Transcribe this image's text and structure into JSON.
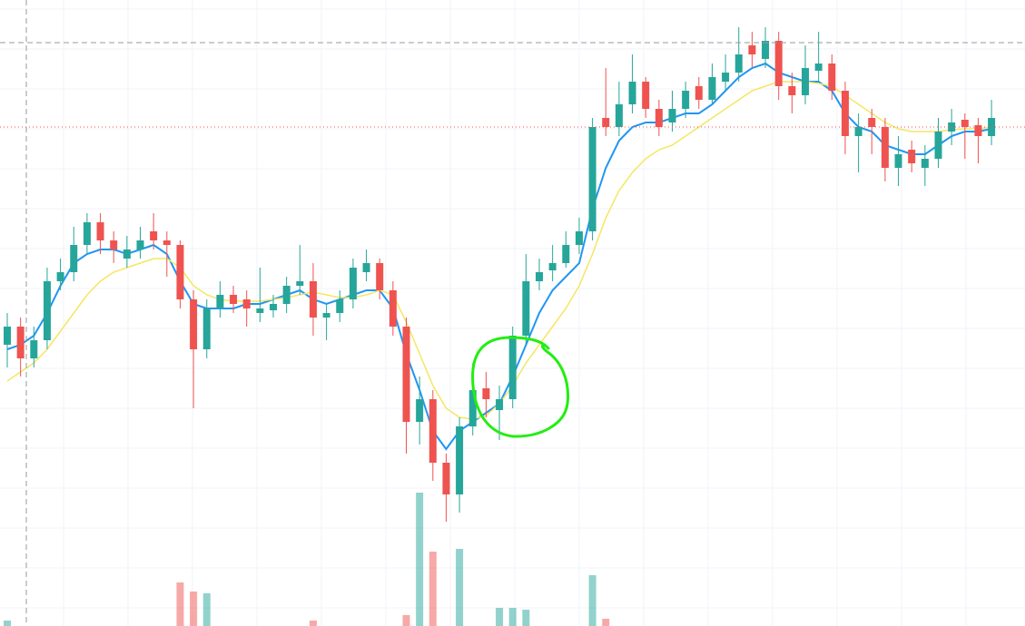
{
  "chart_data": {
    "type": "candlestick",
    "ylim": [
      0,
      690
    ],
    "volume_lim": [
      0,
      690
    ],
    "up_color": "#26a69a",
    "down_color": "#ef5350",
    "grid": true,
    "open": [
      310,
      330,
      295,
      315,
      380,
      390,
      420,
      445,
      425,
      405,
      415,
      435,
      425,
      420,
      360,
      305,
      350,
      365,
      360,
      345,
      348,
      355,
      375,
      380,
      340,
      345,
      360,
      390,
      400,
      370,
      330,
      225,
      250,
      180,
      145,
      220,
      262,
      238,
      250,
      320,
      380,
      392,
      400,
      420,
      435,
      560,
      550,
      575,
      600,
      570,
      555,
      570,
      595,
      580,
      600,
      610,
      640,
      625,
      645,
      595,
      585,
      612,
      620,
      590,
      540,
      560,
      550,
      505,
      525,
      505,
      515,
      545,
      558,
      552,
      540
    ],
    "high": [
      345,
      340,
      330,
      395,
      405,
      440,
      455,
      455,
      435,
      430,
      440,
      455,
      435,
      425,
      370,
      360,
      380,
      375,
      370,
      395,
      365,
      385,
      420,
      400,
      355,
      370,
      405,
      415,
      405,
      380,
      340,
      275,
      260,
      190,
      230,
      290,
      280,
      265,
      330,
      410,
      405,
      420,
      435,
      450,
      560,
      615,
      600,
      630,
      605,
      580,
      590,
      600,
      605,
      620,
      630,
      660,
      655,
      660,
      655,
      610,
      640,
      655,
      630,
      600,
      565,
      570,
      560,
      540,
      535,
      530,
      560,
      570,
      565,
      560,
      580
    ],
    "low": [
      285,
      275,
      285,
      305,
      370,
      380,
      410,
      410,
      400,
      395,
      405,
      415,
      385,
      350,
      240,
      295,
      340,
      345,
      330,
      335,
      340,
      345,
      365,
      320,
      315,
      335,
      350,
      380,
      360,
      320,
      190,
      200,
      160,
      115,
      125,
      210,
      230,
      205,
      240,
      310,
      370,
      380,
      395,
      410,
      425,
      540,
      540,
      565,
      560,
      540,
      545,
      560,
      570,
      575,
      590,
      600,
      615,
      615,
      580,
      565,
      575,
      600,
      580,
      520,
      500,
      520,
      490,
      485,
      500,
      485,
      505,
      530,
      515,
      510,
      530
    ],
    "close": [
      330,
      295,
      315,
      380,
      390,
      420,
      445,
      425,
      415,
      415,
      425,
      425,
      420,
      360,
      305,
      350,
      365,
      355,
      350,
      350,
      355,
      375,
      380,
      340,
      345,
      360,
      395,
      400,
      370,
      330,
      225,
      250,
      180,
      145,
      220,
      260,
      250,
      250,
      320,
      380,
      390,
      400,
      420,
      435,
      550,
      550,
      575,
      600,
      570,
      550,
      570,
      590,
      580,
      605,
      610,
      630,
      630,
      645,
      595,
      585,
      615,
      620,
      590,
      540,
      550,
      550,
      505,
      520,
      510,
      515,
      545,
      555,
      550,
      540,
      560
    ],
    "volume": [
      6,
      null,
      null,
      null,
      null,
      null,
      null,
      null,
      null,
      null,
      null,
      null,
      null,
      48,
      38,
      36,
      null,
      null,
      null,
      null,
      null,
      null,
      null,
      6,
      null,
      null,
      null,
      null,
      null,
      null,
      12,
      147,
      82,
      null,
      85,
      null,
      null,
      20,
      20,
      18,
      null,
      null,
      null,
      null,
      56,
      8,
      null,
      null,
      null,
      null,
      null,
      null,
      null,
      null,
      null,
      null,
      null,
      null,
      null,
      null,
      null,
      null,
      null,
      null,
      null,
      null,
      null,
      null,
      null,
      null,
      null,
      null,
      null,
      null,
      null
    ],
    "lines": [
      {
        "color": "#2196f3",
        "values": [
          305,
          310,
          320,
          345,
          375,
          400,
          410,
          415,
          415,
          410,
          415,
          420,
          410,
          380,
          355,
          350,
          350,
          350,
          355,
          355,
          360,
          365,
          370,
          360,
          355,
          360,
          365,
          370,
          370,
          350,
          300,
          260,
          215,
          195,
          215,
          225,
          235,
          245,
          275,
          310,
          345,
          370,
          385,
          400,
          460,
          505,
          535,
          550,
          555,
          555,
          560,
          565,
          565,
          575,
          590,
          605,
          615,
          620,
          610,
          605,
          600,
          600,
          590,
          565,
          550,
          545,
          530,
          525,
          520,
          520,
          530,
          540,
          545,
          545,
          548
        ]
      },
      {
        "color": "#f5e663",
        "values": [
          270,
          280,
          290,
          305,
          325,
          345,
          365,
          380,
          390,
          395,
          400,
          405,
          405,
          395,
          375,
          365,
          360,
          358,
          358,
          358,
          360,
          362,
          365,
          368,
          365,
          362,
          362,
          365,
          370,
          365,
          335,
          300,
          265,
          240,
          230,
          228,
          232,
          245,
          265,
          290,
          310,
          330,
          350,
          375,
          410,
          450,
          480,
          500,
          515,
          525,
          530,
          540,
          550,
          560,
          570,
          580,
          590,
          595,
          600,
          600,
          600,
          598,
          595,
          585,
          575,
          565,
          555,
          548,
          545,
          545,
          545,
          547,
          548,
          548,
          550
        ]
      }
    ]
  }
}
